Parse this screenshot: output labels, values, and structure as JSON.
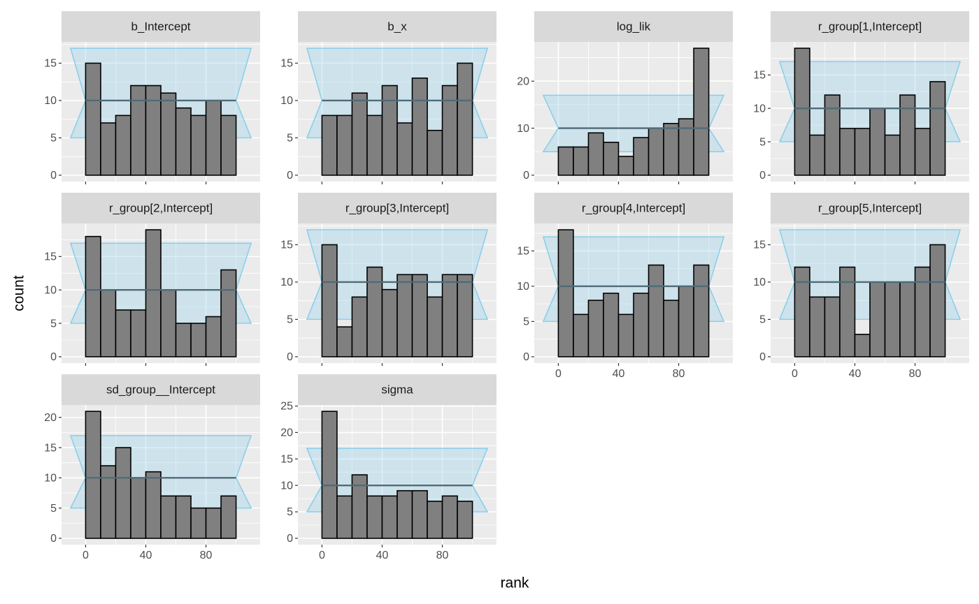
{
  "x_label": "rank",
  "y_label": "count",
  "chart_data": [
    {
      "type": "histogram",
      "title": "b_Intercept",
      "bins": [
        0,
        10,
        20,
        30,
        40,
        50,
        60,
        70,
        80,
        90,
        100
      ],
      "values": [
        15,
        7,
        8,
        12,
        12,
        11,
        9,
        8,
        10,
        8
      ],
      "band": {
        "lower": 5,
        "mean": 10,
        "upper": 17
      },
      "xlim": [
        -16,
        116
      ],
      "xticks": [
        0,
        40,
        80
      ],
      "ylim": [
        -0.85,
        17.85
      ],
      "yticks": [
        0,
        5,
        10,
        15
      ],
      "color": "#808080",
      "band_color": "#87ceeb"
    },
    {
      "type": "histogram",
      "title": "b_x",
      "bins": [
        0,
        10,
        20,
        30,
        40,
        50,
        60,
        70,
        80,
        90,
        100
      ],
      "values": [
        8,
        8,
        11,
        8,
        12,
        7,
        13,
        6,
        12,
        15
      ],
      "band": {
        "lower": 5,
        "mean": 10,
        "upper": 17
      },
      "xlim": [
        -16,
        116
      ],
      "xticks": [
        0,
        40,
        80
      ],
      "ylim": [
        -0.85,
        17.85
      ],
      "yticks": [
        0,
        5,
        10,
        15
      ],
      "color": "#808080",
      "band_color": "#87ceeb"
    },
    {
      "type": "histogram",
      "title": "log_lik",
      "bins": [
        0,
        10,
        20,
        30,
        40,
        50,
        60,
        70,
        80,
        90,
        100
      ],
      "values": [
        6,
        6,
        9,
        7,
        4,
        8,
        10,
        11,
        12,
        27
      ],
      "band": {
        "lower": 5,
        "mean": 10,
        "upper": 17
      },
      "xlim": [
        -16,
        116
      ],
      "xticks": [
        0,
        40,
        80
      ],
      "ylim": [
        -1.35,
        28.35
      ],
      "yticks": [
        0,
        10,
        20
      ],
      "color": "#808080",
      "band_color": "#87ceeb"
    },
    {
      "type": "histogram",
      "title": "r_group[1,Intercept]",
      "bins": [
        0,
        10,
        20,
        30,
        40,
        50,
        60,
        70,
        80,
        90,
        100
      ],
      "values": [
        19,
        6,
        12,
        7,
        7,
        10,
        6,
        12,
        7,
        14
      ],
      "band": {
        "lower": 5,
        "mean": 10,
        "upper": 17
      },
      "xlim": [
        -16,
        116
      ],
      "xticks": [
        0,
        40,
        80
      ],
      "ylim": [
        -0.95,
        19.95
      ],
      "yticks": [
        0,
        5,
        10,
        15
      ],
      "color": "#808080",
      "band_color": "#87ceeb"
    },
    {
      "type": "histogram",
      "title": "r_group[2,Intercept]",
      "bins": [
        0,
        10,
        20,
        30,
        40,
        50,
        60,
        70,
        80,
        90,
        100
      ],
      "values": [
        18,
        10,
        7,
        7,
        19,
        10,
        5,
        5,
        6,
        13
      ],
      "band": {
        "lower": 5,
        "mean": 10,
        "upper": 17
      },
      "xlim": [
        -16,
        116
      ],
      "xticks": [
        0,
        40,
        80
      ],
      "ylim": [
        -0.95,
        19.95
      ],
      "yticks": [
        0,
        5,
        10,
        15
      ],
      "color": "#808080",
      "band_color": "#87ceeb"
    },
    {
      "type": "histogram",
      "title": "r_group[3,Intercept]",
      "bins": [
        0,
        10,
        20,
        30,
        40,
        50,
        60,
        70,
        80,
        90,
        100
      ],
      "values": [
        15,
        4,
        8,
        12,
        9,
        11,
        11,
        8,
        11,
        11
      ],
      "band": {
        "lower": 5,
        "mean": 10,
        "upper": 17
      },
      "xlim": [
        -16,
        116
      ],
      "xticks": [
        0,
        40,
        80
      ],
      "ylim": [
        -0.85,
        17.85
      ],
      "yticks": [
        0,
        5,
        10,
        15
      ],
      "color": "#808080",
      "band_color": "#87ceeb"
    },
    {
      "type": "histogram",
      "title": "r_group[4,Intercept]",
      "bins": [
        0,
        10,
        20,
        30,
        40,
        50,
        60,
        70,
        80,
        90,
        100
      ],
      "values": [
        18,
        6,
        8,
        9,
        6,
        9,
        13,
        8,
        10,
        13
      ],
      "band": {
        "lower": 5,
        "mean": 10,
        "upper": 17
      },
      "xlim": [
        -16,
        116
      ],
      "xticks": [
        0,
        40,
        80
      ],
      "ylim": [
        -0.9,
        18.9
      ],
      "yticks": [
        0,
        5,
        10,
        15
      ],
      "color": "#808080",
      "band_color": "#87ceeb"
    },
    {
      "type": "histogram",
      "title": "r_group[5,Intercept]",
      "bins": [
        0,
        10,
        20,
        30,
        40,
        50,
        60,
        70,
        80,
        90,
        100
      ],
      "values": [
        12,
        8,
        8,
        12,
        3,
        10,
        10,
        10,
        12,
        15
      ],
      "band": {
        "lower": 5,
        "mean": 10,
        "upper": 17
      },
      "xlim": [
        -16,
        116
      ],
      "xticks": [
        0,
        40,
        80
      ],
      "ylim": [
        -0.85,
        17.85
      ],
      "yticks": [
        0,
        5,
        10,
        15
      ],
      "color": "#808080",
      "band_color": "#87ceeb"
    },
    {
      "type": "histogram",
      "title": "sd_group__Intercept",
      "bins": [
        0,
        10,
        20,
        30,
        40,
        50,
        60,
        70,
        80,
        90,
        100
      ],
      "values": [
        21,
        12,
        15,
        10,
        11,
        7,
        7,
        5,
        5,
        7
      ],
      "band": {
        "lower": 5,
        "mean": 10,
        "upper": 17
      },
      "xlim": [
        -16,
        116
      ],
      "xticks": [
        0,
        40,
        80
      ],
      "ylim": [
        -1.05,
        22.05
      ],
      "yticks": [
        0,
        5,
        10,
        15,
        20
      ],
      "color": "#808080",
      "band_color": "#87ceeb"
    },
    {
      "type": "histogram",
      "title": "sigma",
      "bins": [
        0,
        10,
        20,
        30,
        40,
        50,
        60,
        70,
        80,
        90,
        100
      ],
      "values": [
        24,
        8,
        12,
        8,
        8,
        9,
        9,
        7,
        8,
        7
      ],
      "band": {
        "lower": 5,
        "mean": 10,
        "upper": 17
      },
      "xlim": [
        -16,
        116
      ],
      "xticks": [
        0,
        40,
        80
      ],
      "ylim": [
        -1.2,
        25.2
      ],
      "yticks": [
        0,
        5,
        10,
        15,
        20,
        25
      ],
      "color": "#808080",
      "band_color": "#87ceeb"
    }
  ]
}
